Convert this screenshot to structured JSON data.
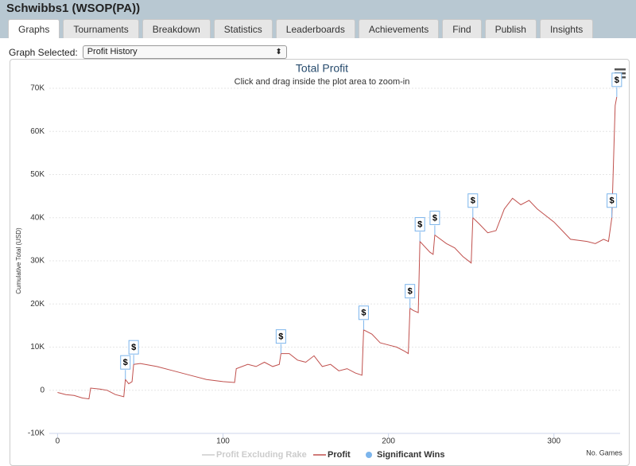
{
  "header": {
    "title": "Schwibbs1 (WSOP(PA))"
  },
  "tabs": [
    "Graphs",
    "Tournaments",
    "Breakdown",
    "Statistics",
    "Leaderboards",
    "Achievements",
    "Find",
    "Publish",
    "Insights"
  ],
  "active_tab": 0,
  "selector": {
    "label": "Graph Selected:",
    "value": "Profit History"
  },
  "chart_data": {
    "type": "line",
    "title": "Total Profit",
    "subtitle": "Click and drag inside the plot area to zoom-in",
    "y_label": "Cumulative Total (USD)",
    "x_label": "No. Games",
    "flag_label": "$",
    "xlim": [
      -5,
      340
    ],
    "ylim": [
      -10000,
      70000
    ],
    "xticks": [
      0,
      100,
      200,
      300
    ],
    "yticks": [
      {
        "value": -10000,
        "label": "-10K"
      },
      0,
      {
        "value": 10000,
        "label": "10K"
      },
      {
        "value": 20000,
        "label": "20K"
      },
      {
        "value": 30000,
        "label": "30K"
      },
      {
        "value": 40000,
        "label": "40K"
      },
      {
        "value": 50000,
        "label": "50K"
      },
      {
        "value": 60000,
        "label": "60K"
      },
      {
        "value": 70000,
        "label": "70K"
      }
    ],
    "grid": true,
    "series": [
      {
        "name": "Profit Excluding Rake",
        "color": "#cccccc",
        "visible": false
      },
      {
        "name": "Profit",
        "color": "#c0504d",
        "x": [
          0,
          5,
          10,
          15,
          19,
          20,
          25,
          30,
          35,
          40,
          41,
          43,
          45,
          46,
          50,
          60,
          70,
          80,
          90,
          100,
          107,
          108,
          115,
          120,
          125,
          130,
          134,
          135,
          140,
          145,
          150,
          155,
          160,
          165,
          170,
          175,
          180,
          184,
          185,
          190,
          195,
          200,
          205,
          210,
          212,
          213,
          215,
          218,
          219,
          225,
          227,
          228,
          235,
          240,
          245,
          250,
          251,
          255,
          260,
          265,
          270,
          275,
          280,
          285,
          290,
          300,
          305,
          310,
          320,
          325,
          330,
          333,
          335,
          337,
          338
        ],
        "values": [
          -500,
          -1000,
          -1200,
          -1800,
          -2000,
          500,
          300,
          0,
          -1000,
          -1500,
          2500,
          1500,
          2000,
          6000,
          6200,
          5500,
          4500,
          3500,
          2500,
          2000,
          1800,
          5000,
          6000,
          5500,
          6500,
          5500,
          6000,
          8500,
          8500,
          7000,
          6500,
          8000,
          5500,
          6000,
          4500,
          5000,
          4000,
          3500,
          14000,
          13000,
          11000,
          10500,
          10000,
          9000,
          8500,
          19000,
          18500,
          18000,
          34500,
          32000,
          31500,
          36000,
          34000,
          33000,
          31000,
          29500,
          40000,
          38500,
          36500,
          37000,
          42000,
          44500,
          43000,
          44000,
          42000,
          39000,
          37000,
          35000,
          34500,
          34000,
          35000,
          34500,
          40000,
          66000,
          68000
        ]
      },
      {
        "name": "Significant Wins",
        "color": "#7cb5ec",
        "x": [
          41,
          46,
          135,
          185,
          213,
          219,
          228,
          251,
          335,
          338
        ],
        "values": [
          2500,
          6000,
          8500,
          14000,
          19000,
          34500,
          36000,
          40000,
          40000,
          68000
        ]
      }
    ]
  }
}
